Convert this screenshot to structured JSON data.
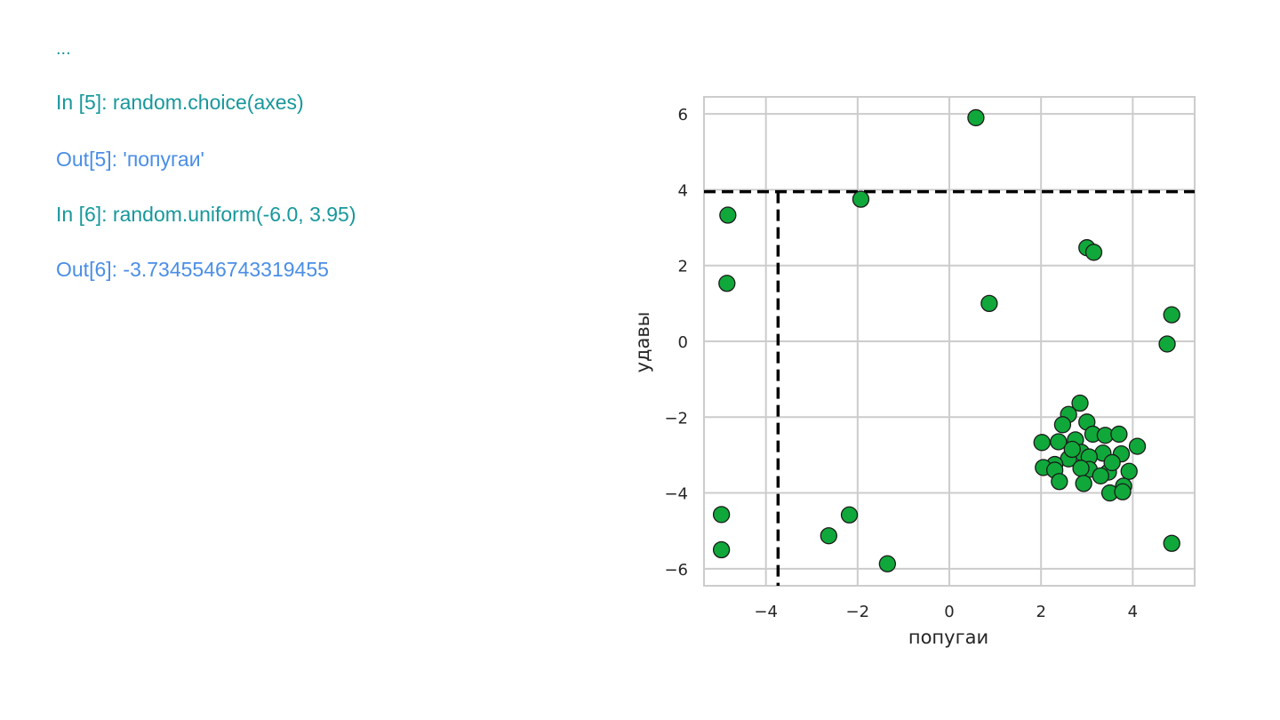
{
  "console": {
    "ellipsis": "...",
    "lines": [
      {
        "text": "In [5]: random.choice(axes)",
        "kind": "in"
      },
      {
        "text": "Out[5]: 'попугаи'",
        "kind": "out"
      },
      {
        "text": "In [6]: random.uniform(-6.0, 3.95)",
        "kind": "in"
      },
      {
        "text": "Out[6]: -3.7345546743319455",
        "kind": "out"
      }
    ]
  },
  "colors": {
    "in_text": "#17979c",
    "out_text": "#4a8ee6",
    "marker_fill": "#10a83a",
    "marker_edge": "#1a1a1a",
    "grid": "#cccccc",
    "dashed_line": "#000000"
  },
  "chart_data": {
    "type": "scatter",
    "xlabel": "попугаи",
    "ylabel": "удавы",
    "xlim": [
      -5.35,
      5.35
    ],
    "ylim": [
      -6.45,
      6.45
    ],
    "xticks": [
      -4,
      -2,
      0,
      2,
      4
    ],
    "yticks": [
      -6,
      -4,
      -2,
      0,
      2,
      4,
      6
    ],
    "xtick_labels": [
      "−4",
      "−2",
      "0",
      "2",
      "4"
    ],
    "ytick_labels": [
      "−6",
      "−4",
      "−2",
      "0",
      "2",
      "4",
      "6"
    ],
    "grid": true,
    "reference_lines": {
      "vertical_x": -3.7345546743319455,
      "horizontal_y": 3.95,
      "style": "dashed"
    },
    "points": [
      {
        "x": 0.58,
        "y": 5.9
      },
      {
        "x": -1.93,
        "y": 3.75
      },
      {
        "x": -4.83,
        "y": 3.33
      },
      {
        "x": -4.85,
        "y": 1.53
      },
      {
        "x": 3.0,
        "y": 2.47
      },
      {
        "x": 3.15,
        "y": 2.35
      },
      {
        "x": 0.87,
        "y": 1.0
      },
      {
        "x": 4.85,
        "y": 0.7
      },
      {
        "x": 4.75,
        "y": -0.07
      },
      {
        "x": 4.85,
        "y": -5.33
      },
      {
        "x": -4.97,
        "y": -4.57
      },
      {
        "x": -4.97,
        "y": -5.5
      },
      {
        "x": -2.18,
        "y": -4.58
      },
      {
        "x": -2.63,
        "y": -5.13
      },
      {
        "x": -1.35,
        "y": -5.87
      },
      {
        "x": 2.85,
        "y": -1.63
      },
      {
        "x": 2.6,
        "y": -1.93
      },
      {
        "x": 2.47,
        "y": -2.2
      },
      {
        "x": 3.0,
        "y": -2.13
      },
      {
        "x": 2.02,
        "y": -2.67
      },
      {
        "x": 2.38,
        "y": -2.65
      },
      {
        "x": 2.75,
        "y": -2.6
      },
      {
        "x": 3.13,
        "y": -2.45
      },
      {
        "x": 3.4,
        "y": -2.48
      },
      {
        "x": 3.7,
        "y": -2.45
      },
      {
        "x": 4.1,
        "y": -2.77
      },
      {
        "x": 2.88,
        "y": -2.93
      },
      {
        "x": 3.35,
        "y": -2.95
      },
      {
        "x": 3.75,
        "y": -2.97
      },
      {
        "x": 2.6,
        "y": -3.1
      },
      {
        "x": 3.05,
        "y": -3.05
      },
      {
        "x": 2.3,
        "y": -3.25
      },
      {
        "x": 2.05,
        "y": -3.33
      },
      {
        "x": 2.3,
        "y": -3.4
      },
      {
        "x": 3.05,
        "y": -3.38
      },
      {
        "x": 3.47,
        "y": -3.45
      },
      {
        "x": 3.92,
        "y": -3.43
      },
      {
        "x": 2.87,
        "y": -3.35
      },
      {
        "x": 2.4,
        "y": -3.7
      },
      {
        "x": 2.93,
        "y": -3.75
      },
      {
        "x": 3.8,
        "y": -3.82
      },
      {
        "x": 3.5,
        "y": -4.0
      },
      {
        "x": 3.78,
        "y": -3.97
      },
      {
        "x": 3.3,
        "y": -3.55
      },
      {
        "x": 2.68,
        "y": -2.85
      },
      {
        "x": 3.55,
        "y": -3.2
      }
    ]
  }
}
